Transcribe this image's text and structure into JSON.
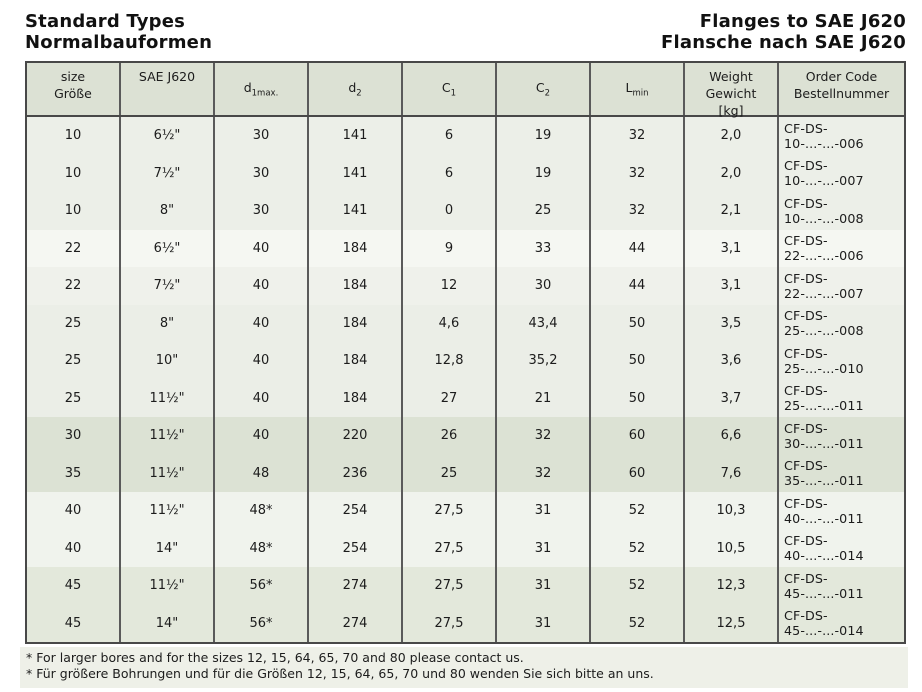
{
  "titles": {
    "left_line1": "Standard Types",
    "left_line2": "Normalbauformen",
    "right_line1": "Flanges to SAE J620",
    "right_line2": "Flansche nach SAE J620"
  },
  "colors": {
    "header_bg": "#dce1d4",
    "border": "#484848",
    "footnote_bg": "#eef0e8",
    "text": "#1c1c1c"
  },
  "table": {
    "columns": [
      {
        "type": "lines",
        "lines": [
          "size",
          "Größe"
        ]
      },
      {
        "type": "lines",
        "lines": [
          "SAE J620"
        ]
      },
      {
        "type": "sub",
        "base": "d",
        "sub": "1max."
      },
      {
        "type": "sub",
        "base": "d",
        "sub": "2"
      },
      {
        "type": "sub",
        "base": "C",
        "sub": "1"
      },
      {
        "type": "sub",
        "base": "C",
        "sub": "2"
      },
      {
        "type": "sub",
        "base": "L",
        "sub": "min"
      },
      {
        "type": "lines",
        "lines": [
          "Weight",
          "Gewicht",
          "[kg]"
        ]
      },
      {
        "type": "lines",
        "lines": [
          "Order Code",
          "Bestellnummer"
        ]
      }
    ],
    "rows": [
      {
        "shade": "#ecefe8",
        "cells": [
          "10",
          "6½\"",
          "30",
          "141",
          "6",
          "19",
          "32",
          "2,0",
          "CF-DS-10-...-...-006"
        ]
      },
      {
        "shade": "#ecefe8",
        "cells": [
          "10",
          "7½\"",
          "30",
          "141",
          "6",
          "19",
          "32",
          "2,0",
          "CF-DS-10-...-...-007"
        ]
      },
      {
        "shade": "#ecefe8",
        "cells": [
          "10",
          "8\"",
          "30",
          "141",
          "0",
          "25",
          "32",
          "2,1",
          "CF-DS-10-...-...-008"
        ]
      },
      {
        "shade": "#f5f7f2",
        "cells": [
          "22",
          "6½\"",
          "40",
          "184",
          "9",
          "33",
          "44",
          "3,1",
          "CF-DS-22-...-...-006"
        ]
      },
      {
        "shade": "#eff1eb",
        "cells": [
          "22",
          "7½\"",
          "40",
          "184",
          "12",
          "30",
          "44",
          "3,1",
          "CF-DS-22-...-...-007"
        ]
      },
      {
        "shade": "#ebeee7",
        "cells": [
          "25",
          "8\"",
          "40",
          "184",
          "4,6",
          "43,4",
          "50",
          "3,5",
          "CF-DS-25-...-...-008"
        ]
      },
      {
        "shade": "#ebeee7",
        "cells": [
          "25",
          "10\"",
          "40",
          "184",
          "12,8",
          "35,2",
          "50",
          "3,6",
          "CF-DS-25-...-...-010"
        ]
      },
      {
        "shade": "#ebeee7",
        "cells": [
          "25",
          "11½\"",
          "40",
          "184",
          "27",
          "21",
          "50",
          "3,7",
          "CF-DS-25-...-...-011"
        ]
      },
      {
        "shade": "#dce2d4",
        "cells": [
          "30",
          "11½\"",
          "40",
          "220",
          "26",
          "32",
          "60",
          "6,6",
          "CF-DS-30-...-...-011"
        ]
      },
      {
        "shade": "#dce2d4",
        "cells": [
          "35",
          "11½\"",
          "48",
          "236",
          "25",
          "32",
          "60",
          "7,6",
          "CF-DS-35-...-...-011"
        ]
      },
      {
        "shade": "#f0f3ed",
        "cells": [
          "40",
          "11½\"",
          "48*",
          "254",
          "27,5",
          "31",
          "52",
          "10,3",
          "CF-DS-40-...-...-011"
        ]
      },
      {
        "shade": "#f0f3ed",
        "cells": [
          "40",
          "14\"",
          "48*",
          "254",
          "27,5",
          "31",
          "52",
          "10,5",
          "CF-DS-40-...-...-014"
        ]
      },
      {
        "shade": "#e3e8db",
        "cells": [
          "45",
          "11½\"",
          "56*",
          "274",
          "27,5",
          "31",
          "52",
          "12,3",
          "CF-DS-45-...-...-011"
        ]
      },
      {
        "shade": "#e3e8db",
        "cells": [
          "45",
          "14\"",
          "56*",
          "274",
          "27,5",
          "31",
          "52",
          "12,5",
          "CF-DS-45-...-...-014"
        ]
      }
    ]
  },
  "footnotes": [
    "* For larger bores and for the sizes 12, 15, 64, 65, 70 and 80 please contact us.",
    "* Für größere Bohrungen und für die Größen 12, 15, 64, 65, 70 und 80 wenden Sie sich bitte an uns."
  ]
}
